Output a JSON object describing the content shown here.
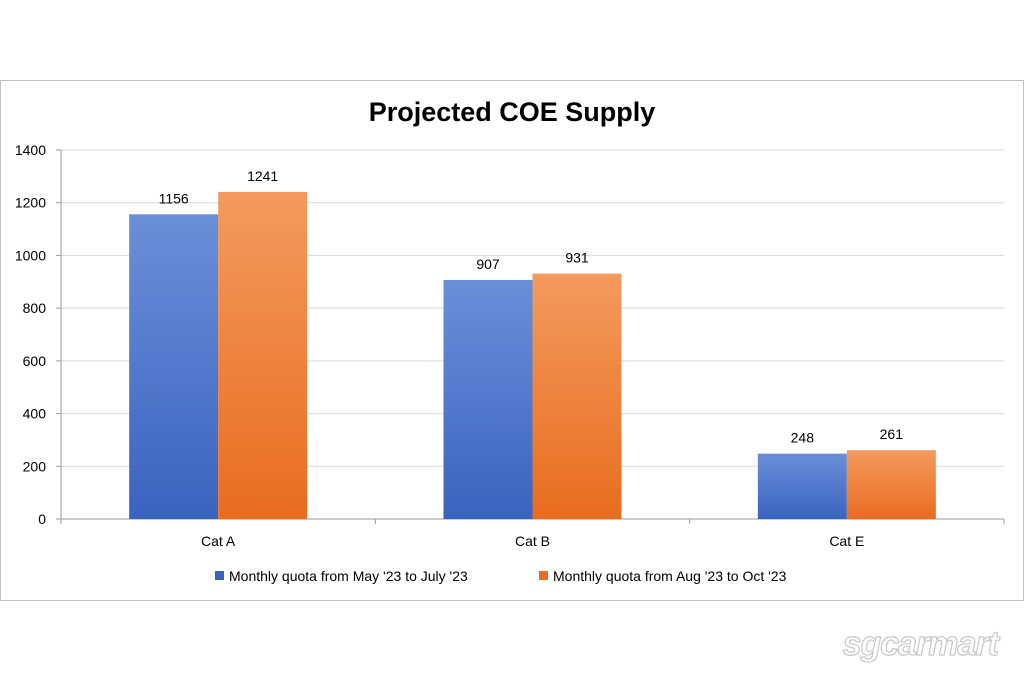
{
  "chart_data": {
    "type": "bar",
    "title": "Projected COE Supply",
    "categories": [
      "Cat A",
      "Cat B",
      "Cat E"
    ],
    "series": [
      {
        "name": "Monthly quota from May '23 to July '23",
        "values": [
          1156,
          907,
          248
        ],
        "color": "#4472C4"
      },
      {
        "name": "Monthly quota from Aug '23 to Oct '23",
        "values": [
          1241,
          931,
          261
        ],
        "color": "#ED7D31"
      }
    ],
    "ylim": [
      0,
      1400
    ],
    "yticks": [
      0,
      200,
      400,
      600,
      800,
      1000,
      1200,
      1400
    ],
    "xlabel": "",
    "ylabel": "",
    "grid": true,
    "legend_position": "bottom"
  },
  "watermark": "sgcarmart",
  "colors": {
    "series_1_light": "#6a8fd8",
    "series_1_dark": "#3a63c0",
    "series_2_light": "#f49a5f",
    "series_2_dark": "#e86d1e",
    "gridline": "#d9d9d9",
    "axis": "#9a9a9a"
  }
}
